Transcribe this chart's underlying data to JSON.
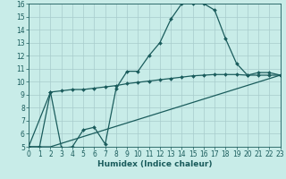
{
  "bg_color": "#c8ece8",
  "grid_color": "#a8cccc",
  "line_color": "#1a5c5c",
  "xlabel": "Humidex (Indice chaleur)",
  "xlim": [
    0,
    23
  ],
  "ylim": [
    5,
    16
  ],
  "xticks": [
    0,
    1,
    2,
    3,
    4,
    5,
    6,
    7,
    8,
    9,
    10,
    11,
    12,
    13,
    14,
    15,
    16,
    17,
    18,
    19,
    20,
    21,
    22,
    23
  ],
  "yticks": [
    5,
    6,
    7,
    8,
    9,
    10,
    11,
    12,
    13,
    14,
    15,
    16
  ],
  "line1_x": [
    0,
    1,
    2,
    3,
    4,
    5,
    6,
    7,
    8,
    9,
    10,
    11,
    12,
    13,
    14,
    15,
    16,
    17,
    18,
    19,
    20,
    21,
    22,
    23
  ],
  "line1_y": [
    5.0,
    5.0,
    9.2,
    4.9,
    5.0,
    6.3,
    6.5,
    5.2,
    9.5,
    10.8,
    10.8,
    12.0,
    13.0,
    14.8,
    16.0,
    16.0,
    16.0,
    15.5,
    13.3,
    11.4,
    10.5,
    10.7,
    10.7,
    10.5
  ],
  "line2_x": [
    0,
    2,
    3,
    4,
    5,
    6,
    7,
    8,
    9,
    10,
    11,
    12,
    13,
    14,
    15,
    16,
    17,
    18,
    19,
    20,
    21,
    22,
    23
  ],
  "line2_y": [
    5.0,
    9.2,
    9.3,
    9.4,
    9.4,
    9.5,
    9.6,
    9.7,
    9.85,
    9.95,
    10.05,
    10.15,
    10.25,
    10.35,
    10.45,
    10.5,
    10.55,
    10.55,
    10.55,
    10.5,
    10.5,
    10.5,
    10.5
  ],
  "line3_x": [
    0,
    2,
    23
  ],
  "line3_y": [
    5.0,
    5.0,
    10.5
  ],
  "markersize": 2.0,
  "linewidth": 0.9,
  "tick_fontsize": 5.5,
  "xlabel_fontsize": 6.5
}
